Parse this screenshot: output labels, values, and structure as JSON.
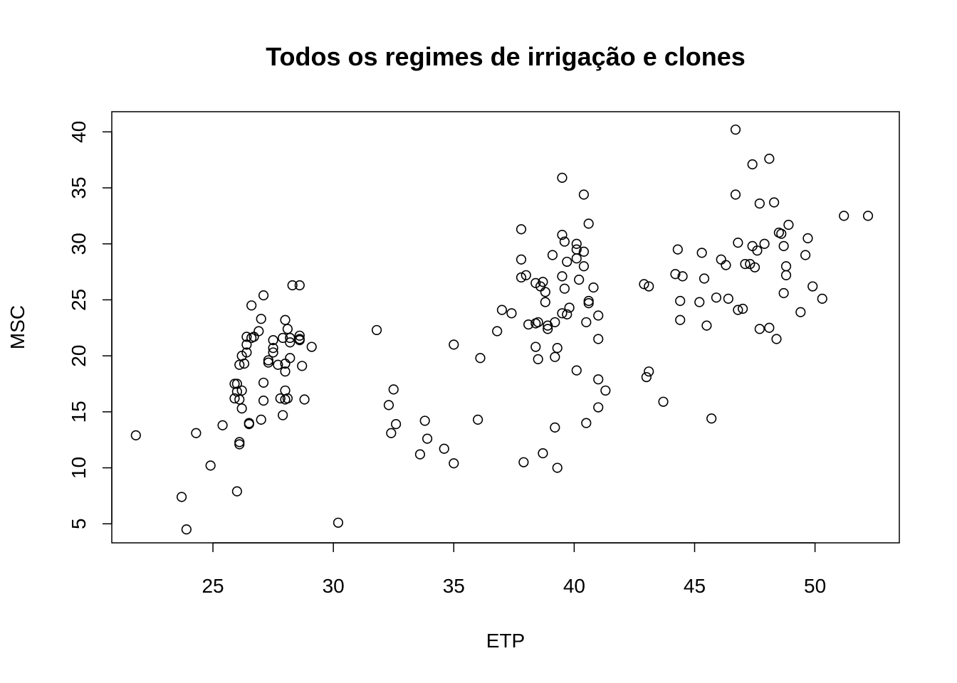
{
  "chart_data": {
    "type": "scatter",
    "title": "Todos os regimes de irrigação e clones",
    "xlabel": "ETP",
    "ylabel": "MSC",
    "xlim": [
      20.8,
      53.5
    ],
    "ylim": [
      3.3,
      41.8
    ],
    "xticks": [
      25,
      30,
      35,
      40,
      45,
      50
    ],
    "yticks": [
      5,
      10,
      15,
      20,
      25,
      30,
      35,
      40
    ],
    "grid": false,
    "series": [
      {
        "points": [
          [
            21.8,
            12.9
          ],
          [
            23.7,
            7.4
          ],
          [
            23.9,
            4.5
          ],
          [
            24.3,
            13.1
          ],
          [
            24.9,
            10.2
          ],
          [
            25.4,
            13.8
          ],
          [
            25.9,
            16.2
          ],
          [
            25.9,
            17.5
          ],
          [
            26.0,
            16.8
          ],
          [
            26.0,
            17.5
          ],
          [
            26.1,
            16.1
          ],
          [
            26.1,
            12.3
          ],
          [
            26.1,
            12.1
          ],
          [
            26.1,
            19.2
          ],
          [
            26.2,
            16.9
          ],
          [
            26.2,
            15.3
          ],
          [
            26.2,
            20.0
          ],
          [
            26.3,
            19.3
          ],
          [
            26.4,
            20.3
          ],
          [
            26.4,
            21.0
          ],
          [
            26.4,
            21.7
          ],
          [
            26.5,
            13.9
          ],
          [
            26.5,
            14.0
          ],
          [
            26.6,
            21.6
          ],
          [
            26.6,
            24.5
          ],
          [
            26.7,
            21.7
          ],
          [
            26.0,
            7.9
          ],
          [
            26.9,
            22.2
          ],
          [
            27.0,
            23.3
          ],
          [
            27.0,
            14.3
          ],
          [
            27.1,
            17.6
          ],
          [
            27.1,
            16.0
          ],
          [
            27.1,
            25.4
          ],
          [
            27.3,
            19.6
          ],
          [
            27.3,
            19.4
          ],
          [
            27.5,
            20.3
          ],
          [
            27.5,
            20.7
          ],
          [
            27.5,
            21.4
          ],
          [
            27.7,
            19.2
          ],
          [
            27.8,
            16.2
          ],
          [
            27.9,
            21.6
          ],
          [
            27.9,
            14.7
          ],
          [
            28.0,
            23.2
          ],
          [
            28.0,
            18.6
          ],
          [
            28.0,
            19.3
          ],
          [
            28.0,
            16.1
          ],
          [
            28.0,
            16.9
          ],
          [
            28.1,
            16.2
          ],
          [
            28.1,
            22.4
          ],
          [
            28.2,
            21.2
          ],
          [
            28.2,
            21.6
          ],
          [
            28.2,
            19.8
          ],
          [
            28.3,
            26.3
          ],
          [
            28.6,
            26.3
          ],
          [
            28.6,
            21.4
          ],
          [
            28.6,
            21.8
          ],
          [
            28.6,
            21.5
          ],
          [
            28.7,
            19.1
          ],
          [
            28.8,
            16.1
          ],
          [
            29.1,
            20.8
          ],
          [
            30.2,
            5.1
          ],
          [
            31.8,
            22.3
          ],
          [
            32.3,
            15.6
          ],
          [
            32.4,
            13.1
          ],
          [
            32.5,
            17.0
          ],
          [
            32.6,
            13.9
          ],
          [
            33.6,
            11.2
          ],
          [
            33.8,
            14.2
          ],
          [
            33.9,
            12.6
          ],
          [
            34.6,
            11.7
          ],
          [
            35.0,
            21.0
          ],
          [
            35.0,
            10.4
          ],
          [
            36.1,
            19.8
          ],
          [
            36.0,
            14.3
          ],
          [
            36.8,
            22.2
          ],
          [
            37.0,
            24.1
          ],
          [
            37.4,
            23.8
          ],
          [
            37.8,
            28.6
          ],
          [
            37.8,
            31.3
          ],
          [
            37.8,
            27.0
          ],
          [
            38.0,
            27.2
          ],
          [
            37.9,
            10.5
          ],
          [
            38.1,
            22.8
          ],
          [
            38.4,
            22.9
          ],
          [
            38.5,
            23.0
          ],
          [
            38.4,
            20.8
          ],
          [
            38.5,
            19.7
          ],
          [
            38.4,
            26.5
          ],
          [
            38.6,
            26.2
          ],
          [
            38.7,
            26.6
          ],
          [
            38.7,
            11.3
          ],
          [
            38.8,
            25.7
          ],
          [
            38.8,
            24.8
          ],
          [
            38.9,
            22.4
          ],
          [
            38.9,
            22.7
          ],
          [
            39.1,
            29.0
          ],
          [
            39.2,
            23.0
          ],
          [
            39.3,
            20.7
          ],
          [
            39.2,
            19.9
          ],
          [
            39.2,
            13.6
          ],
          [
            39.3,
            10.0
          ],
          [
            39.5,
            35.9
          ],
          [
            39.5,
            30.8
          ],
          [
            39.6,
            30.2
          ],
          [
            39.5,
            27.1
          ],
          [
            39.5,
            23.8
          ],
          [
            39.6,
            26.0
          ],
          [
            39.7,
            23.7
          ],
          [
            39.7,
            28.4
          ],
          [
            39.8,
            24.3
          ],
          [
            40.1,
            30.0
          ],
          [
            40.1,
            29.5
          ],
          [
            40.1,
            28.7
          ],
          [
            40.2,
            26.8
          ],
          [
            40.1,
            18.7
          ],
          [
            40.4,
            34.4
          ],
          [
            40.4,
            29.3
          ],
          [
            40.4,
            28.0
          ],
          [
            40.5,
            23.0
          ],
          [
            40.6,
            24.7
          ],
          [
            40.6,
            24.9
          ],
          [
            40.6,
            31.8
          ],
          [
            40.5,
            14.0
          ],
          [
            40.8,
            26.1
          ],
          [
            41.0,
            23.6
          ],
          [
            41.0,
            21.5
          ],
          [
            41.0,
            17.9
          ],
          [
            41.0,
            15.4
          ],
          [
            41.3,
            16.9
          ],
          [
            42.9,
            26.4
          ],
          [
            43.1,
            26.2
          ],
          [
            43.0,
            18.1
          ],
          [
            43.1,
            18.6
          ],
          [
            43.7,
            15.9
          ],
          [
            44.2,
            27.3
          ],
          [
            44.3,
            29.5
          ],
          [
            44.4,
            24.9
          ],
          [
            44.4,
            23.2
          ],
          [
            44.5,
            27.1
          ],
          [
            45.2,
            24.8
          ],
          [
            45.3,
            29.2
          ],
          [
            45.4,
            26.9
          ],
          [
            45.5,
            22.7
          ],
          [
            45.7,
            14.4
          ],
          [
            45.9,
            25.2
          ],
          [
            46.1,
            28.6
          ],
          [
            46.3,
            28.1
          ],
          [
            46.4,
            25.1
          ],
          [
            46.7,
            34.4
          ],
          [
            46.7,
            40.2
          ],
          [
            46.8,
            30.1
          ],
          [
            46.8,
            24.1
          ],
          [
            47.0,
            24.2
          ],
          [
            47.1,
            28.2
          ],
          [
            47.3,
            28.2
          ],
          [
            47.4,
            29.8
          ],
          [
            47.4,
            37.1
          ],
          [
            47.5,
            27.9
          ],
          [
            47.6,
            29.4
          ],
          [
            47.7,
            33.6
          ],
          [
            47.7,
            22.4
          ],
          [
            47.9,
            30.0
          ],
          [
            48.1,
            22.5
          ],
          [
            48.1,
            37.6
          ],
          [
            48.3,
            33.7
          ],
          [
            48.4,
            21.5
          ],
          [
            48.5,
            31.0
          ],
          [
            48.6,
            30.9
          ],
          [
            48.7,
            29.8
          ],
          [
            48.7,
            25.6
          ],
          [
            48.8,
            28.0
          ],
          [
            48.8,
            27.2
          ],
          [
            48.9,
            31.7
          ],
          [
            49.4,
            23.9
          ],
          [
            49.6,
            29.0
          ],
          [
            49.7,
            30.5
          ],
          [
            49.9,
            26.2
          ],
          [
            50.3,
            25.1
          ],
          [
            51.2,
            32.5
          ],
          [
            52.2,
            32.5
          ]
        ]
      }
    ]
  }
}
